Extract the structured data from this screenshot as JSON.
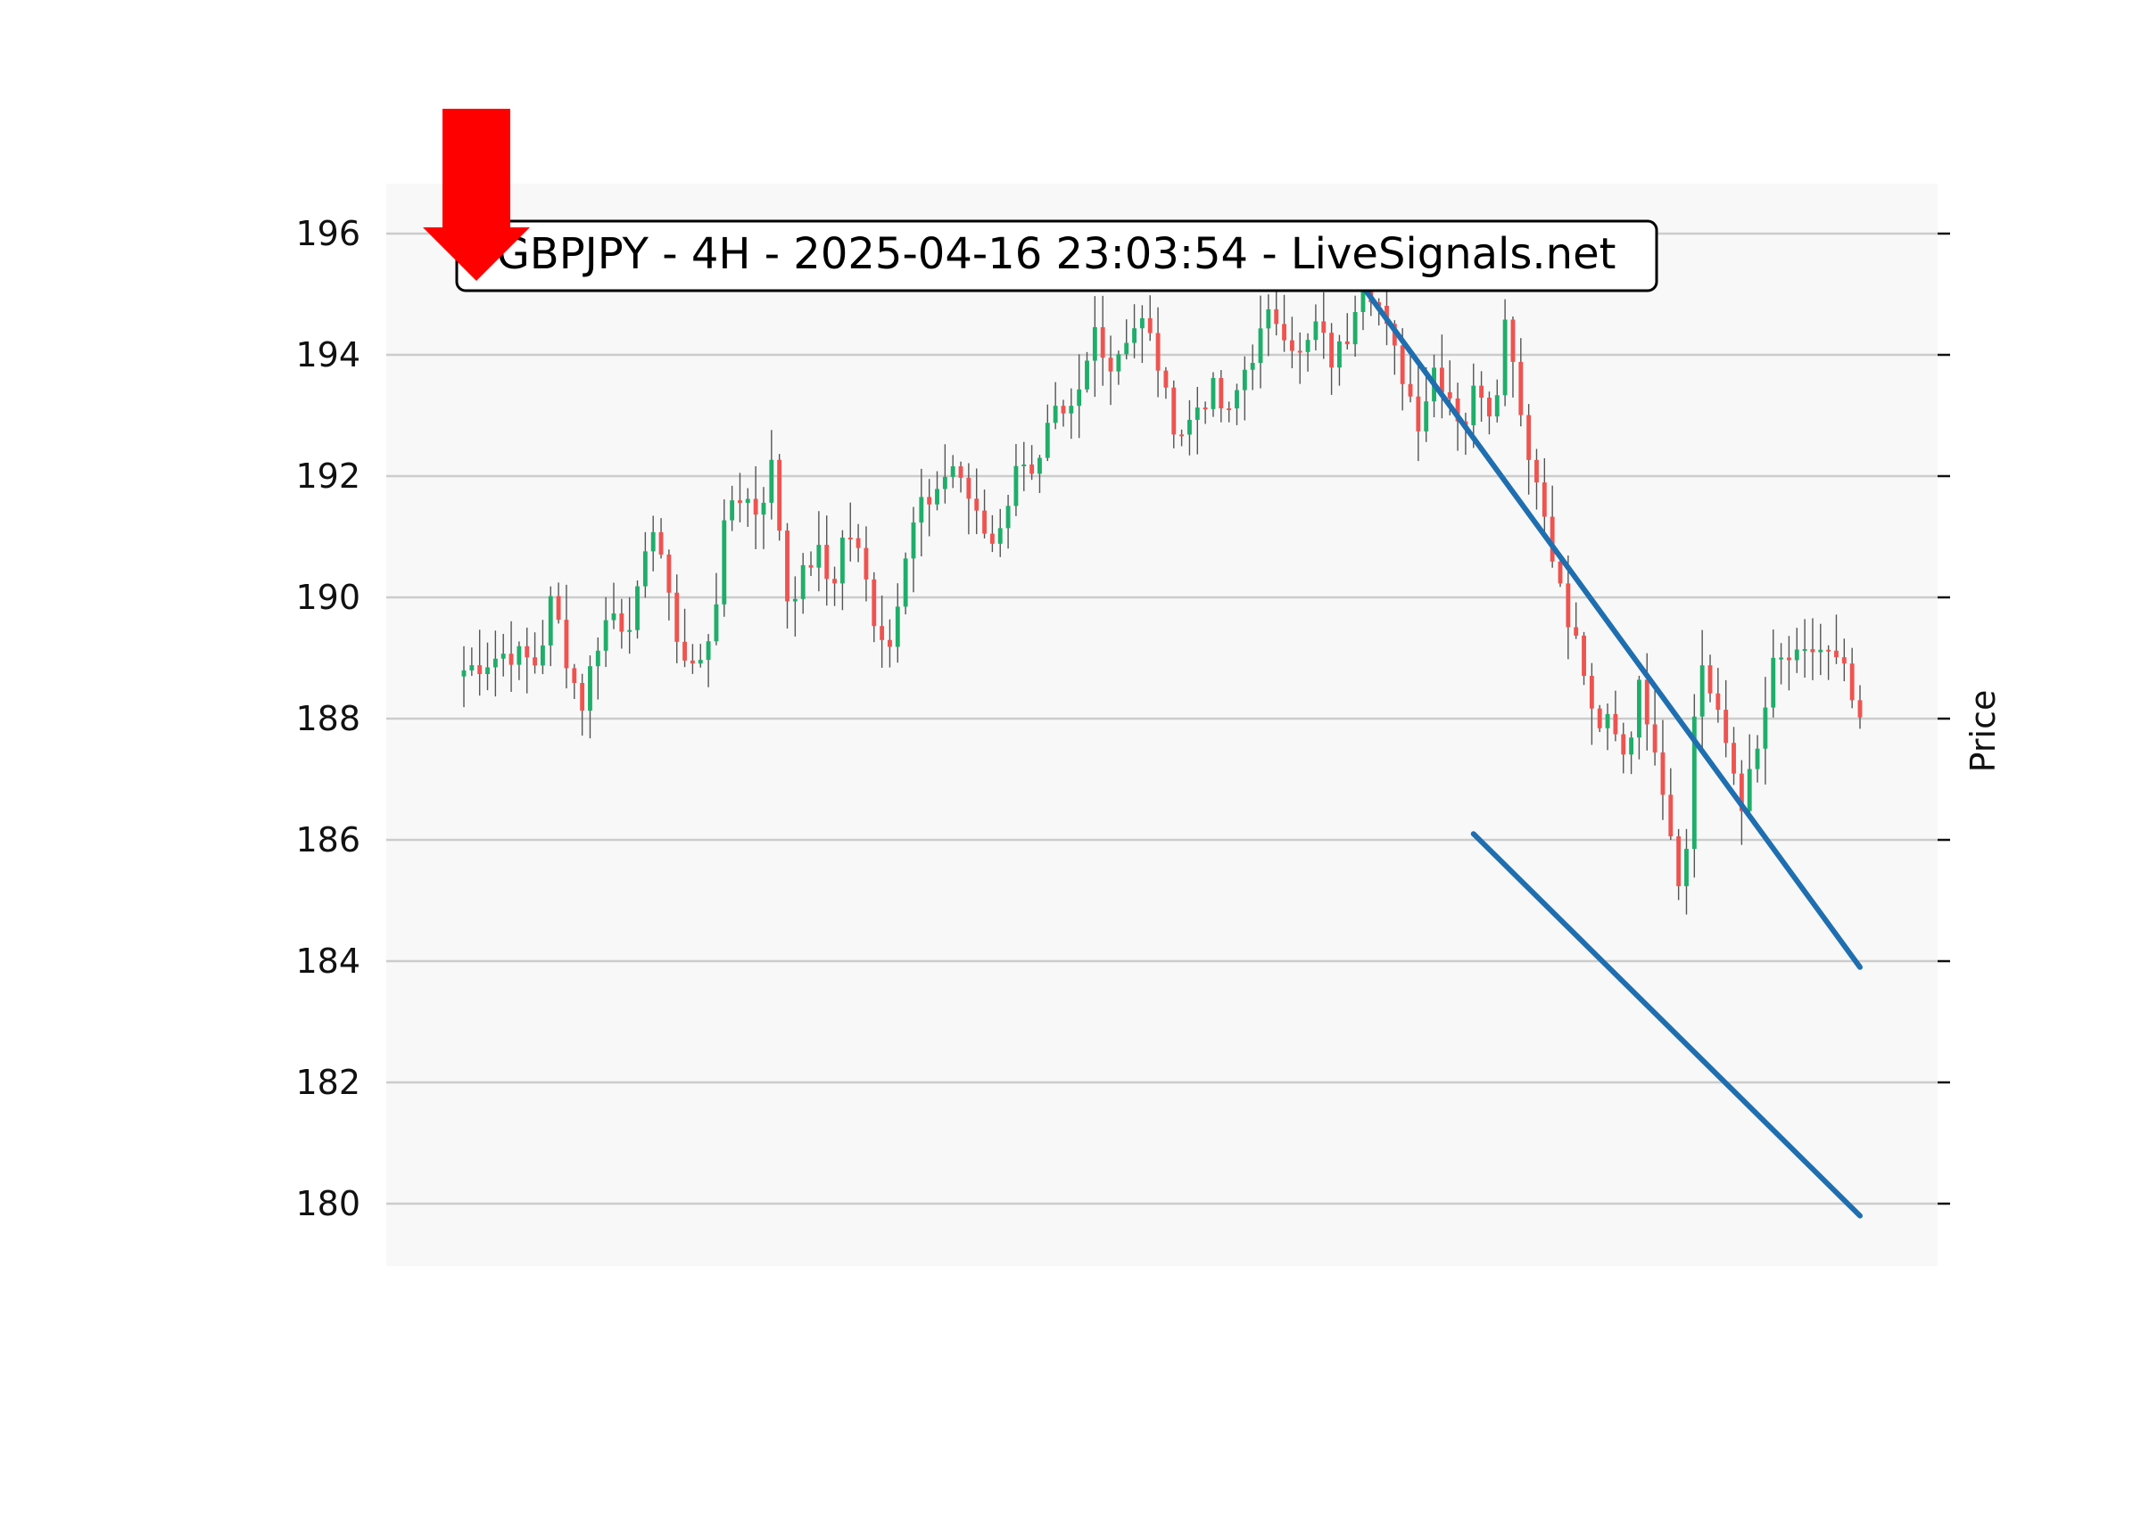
{
  "chart_data": {
    "type": "candlestick",
    "title": "GBPJPY - 4H - 2025-04-16 23:03:54 - LiveSignals.net",
    "ylabel": "Price",
    "y_ticks": [
      180,
      182,
      184,
      186,
      188,
      190,
      192,
      194,
      196
    ],
    "ylim": [
      179.1,
      196.9
    ],
    "grid": true,
    "signal": "down-arrow",
    "colors": {
      "up": "#26a69a",
      "up_candle": "#1fae6a",
      "down": "#ef5350",
      "wick": "#555555",
      "grid": "#cccccc",
      "plot_bg": "#f8f8f8",
      "signal_arrow": "#ff0000",
      "trend_lines": "#1f6fb0"
    },
    "close_path": [
      188.8,
      188.9,
      189.0,
      189.1,
      189.0,
      188.9,
      190.0,
      189.0,
      188.2,
      189.2,
      189.8,
      189.5,
      190.1,
      191.4,
      189.8,
      189.0,
      188.8,
      189.7,
      191.6,
      191.7,
      191.4,
      192.2,
      190.0,
      190.3,
      190.8,
      190.1,
      191.2,
      190.6,
      189.6,
      189.2,
      190.8,
      191.6,
      191.4,
      192.3,
      191.9,
      191.2,
      190.9,
      191.6,
      192.4,
      192.0,
      193.0,
      192.8,
      193.4,
      194.5,
      193.8,
      194.3,
      194.6,
      194.1,
      193.0,
      192.7,
      193.2,
      193.4,
      192.9,
      193.7,
      194.2,
      194.7,
      194.4,
      193.9,
      194.5,
      193.9,
      194.2,
      195.3,
      195.0,
      194.2,
      193.6,
      192.9,
      193.8,
      193.4,
      192.8,
      193.6,
      193.0,
      194.8,
      192.9,
      191.9,
      190.9,
      189.6,
      189.1,
      187.6,
      188.1,
      187.4,
      188.5,
      187.7,
      186.3,
      185.0,
      189.2,
      188.2,
      187.5,
      186.6,
      187.4,
      188.8,
      189.0,
      188.9,
      189.2,
      189.0,
      188.7,
      187.8
    ],
    "trend_lines": [
      {
        "from": {
          "index": 113,
          "price": 195.3
        },
        "to": {
          "index": 177,
          "price": 183.9
        }
      },
      {
        "from": {
          "index": 128,
          "price": 186.1
        },
        "to": {
          "index": 177,
          "price": 179.8
        }
      }
    ]
  }
}
